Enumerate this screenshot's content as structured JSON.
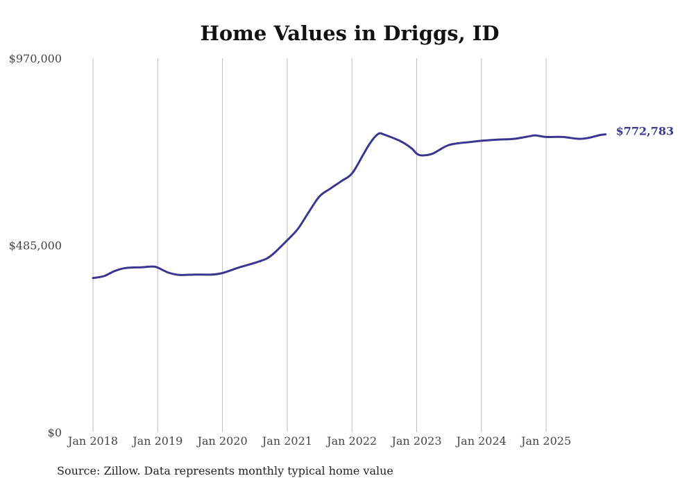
{
  "chart_data": {
    "type": "line",
    "title": "Home Values in Driggs, ID",
    "xlabel": "",
    "ylabel": "",
    "ylim": [
      0,
      970000
    ],
    "x_range": [
      2018.0,
      2026.0
    ],
    "y_tick_labels": [
      {
        "value": 970000,
        "label": "$970,000"
      },
      {
        "value": 485000,
        "label": "$485,000"
      },
      {
        "value": 0,
        "label": "$0"
      }
    ],
    "x_tick_labels": [
      {
        "value": 2018,
        "label": "Jan 2018"
      },
      {
        "value": 2019,
        "label": "Jan 2019"
      },
      {
        "value": 2020,
        "label": "Jan 2020"
      },
      {
        "value": 2021,
        "label": "Jan 2021"
      },
      {
        "value": 2022,
        "label": "Jan 2022"
      },
      {
        "value": 2023,
        "label": "Jan 2023"
      },
      {
        "value": 2024,
        "label": "Jan 2024"
      },
      {
        "value": 2025,
        "label": "Jan 2025"
      }
    ],
    "series": [
      {
        "name": "Typical home value",
        "color": "#3b3592",
        "end_label": "$772,783",
        "x": [
          2018.0,
          2018.167,
          2018.333,
          2018.5,
          2018.75,
          2018.917,
          2019.0,
          2019.167,
          2019.333,
          2019.583,
          2019.833,
          2020.0,
          2020.25,
          2020.583,
          2020.75,
          2021.0,
          2021.167,
          2021.333,
          2021.5,
          2021.667,
          2021.833,
          2022.0,
          2022.167,
          2022.25,
          2022.333,
          2022.417,
          2022.5,
          2022.75,
          2022.917,
          2023.0,
          2023.083,
          2023.25,
          2023.5,
          2023.833,
          2024.0,
          2024.25,
          2024.5,
          2024.75,
          2024.833,
          2025.0,
          2025.25,
          2025.5,
          2025.667,
          2025.833,
          2025.917
        ],
        "values": [
          400000,
          405000,
          418000,
          426000,
          428000,
          430000,
          427000,
          414000,
          408000,
          409000,
          409000,
          413000,
          427000,
          444000,
          458000,
          498000,
          528000,
          571000,
          612000,
          632000,
          651000,
          671000,
          718000,
          742000,
          762000,
          775000,
          772000,
          755000,
          737000,
          723000,
          718000,
          723000,
          745000,
          753000,
          756000,
          759000,
          761000,
          768000,
          770000,
          766000,
          766000,
          761000,
          764000,
          771000,
          772783
        ]
      }
    ]
  },
  "footer": {
    "source_text": "Source: Zillow. Data represents monthly typical home value"
  }
}
